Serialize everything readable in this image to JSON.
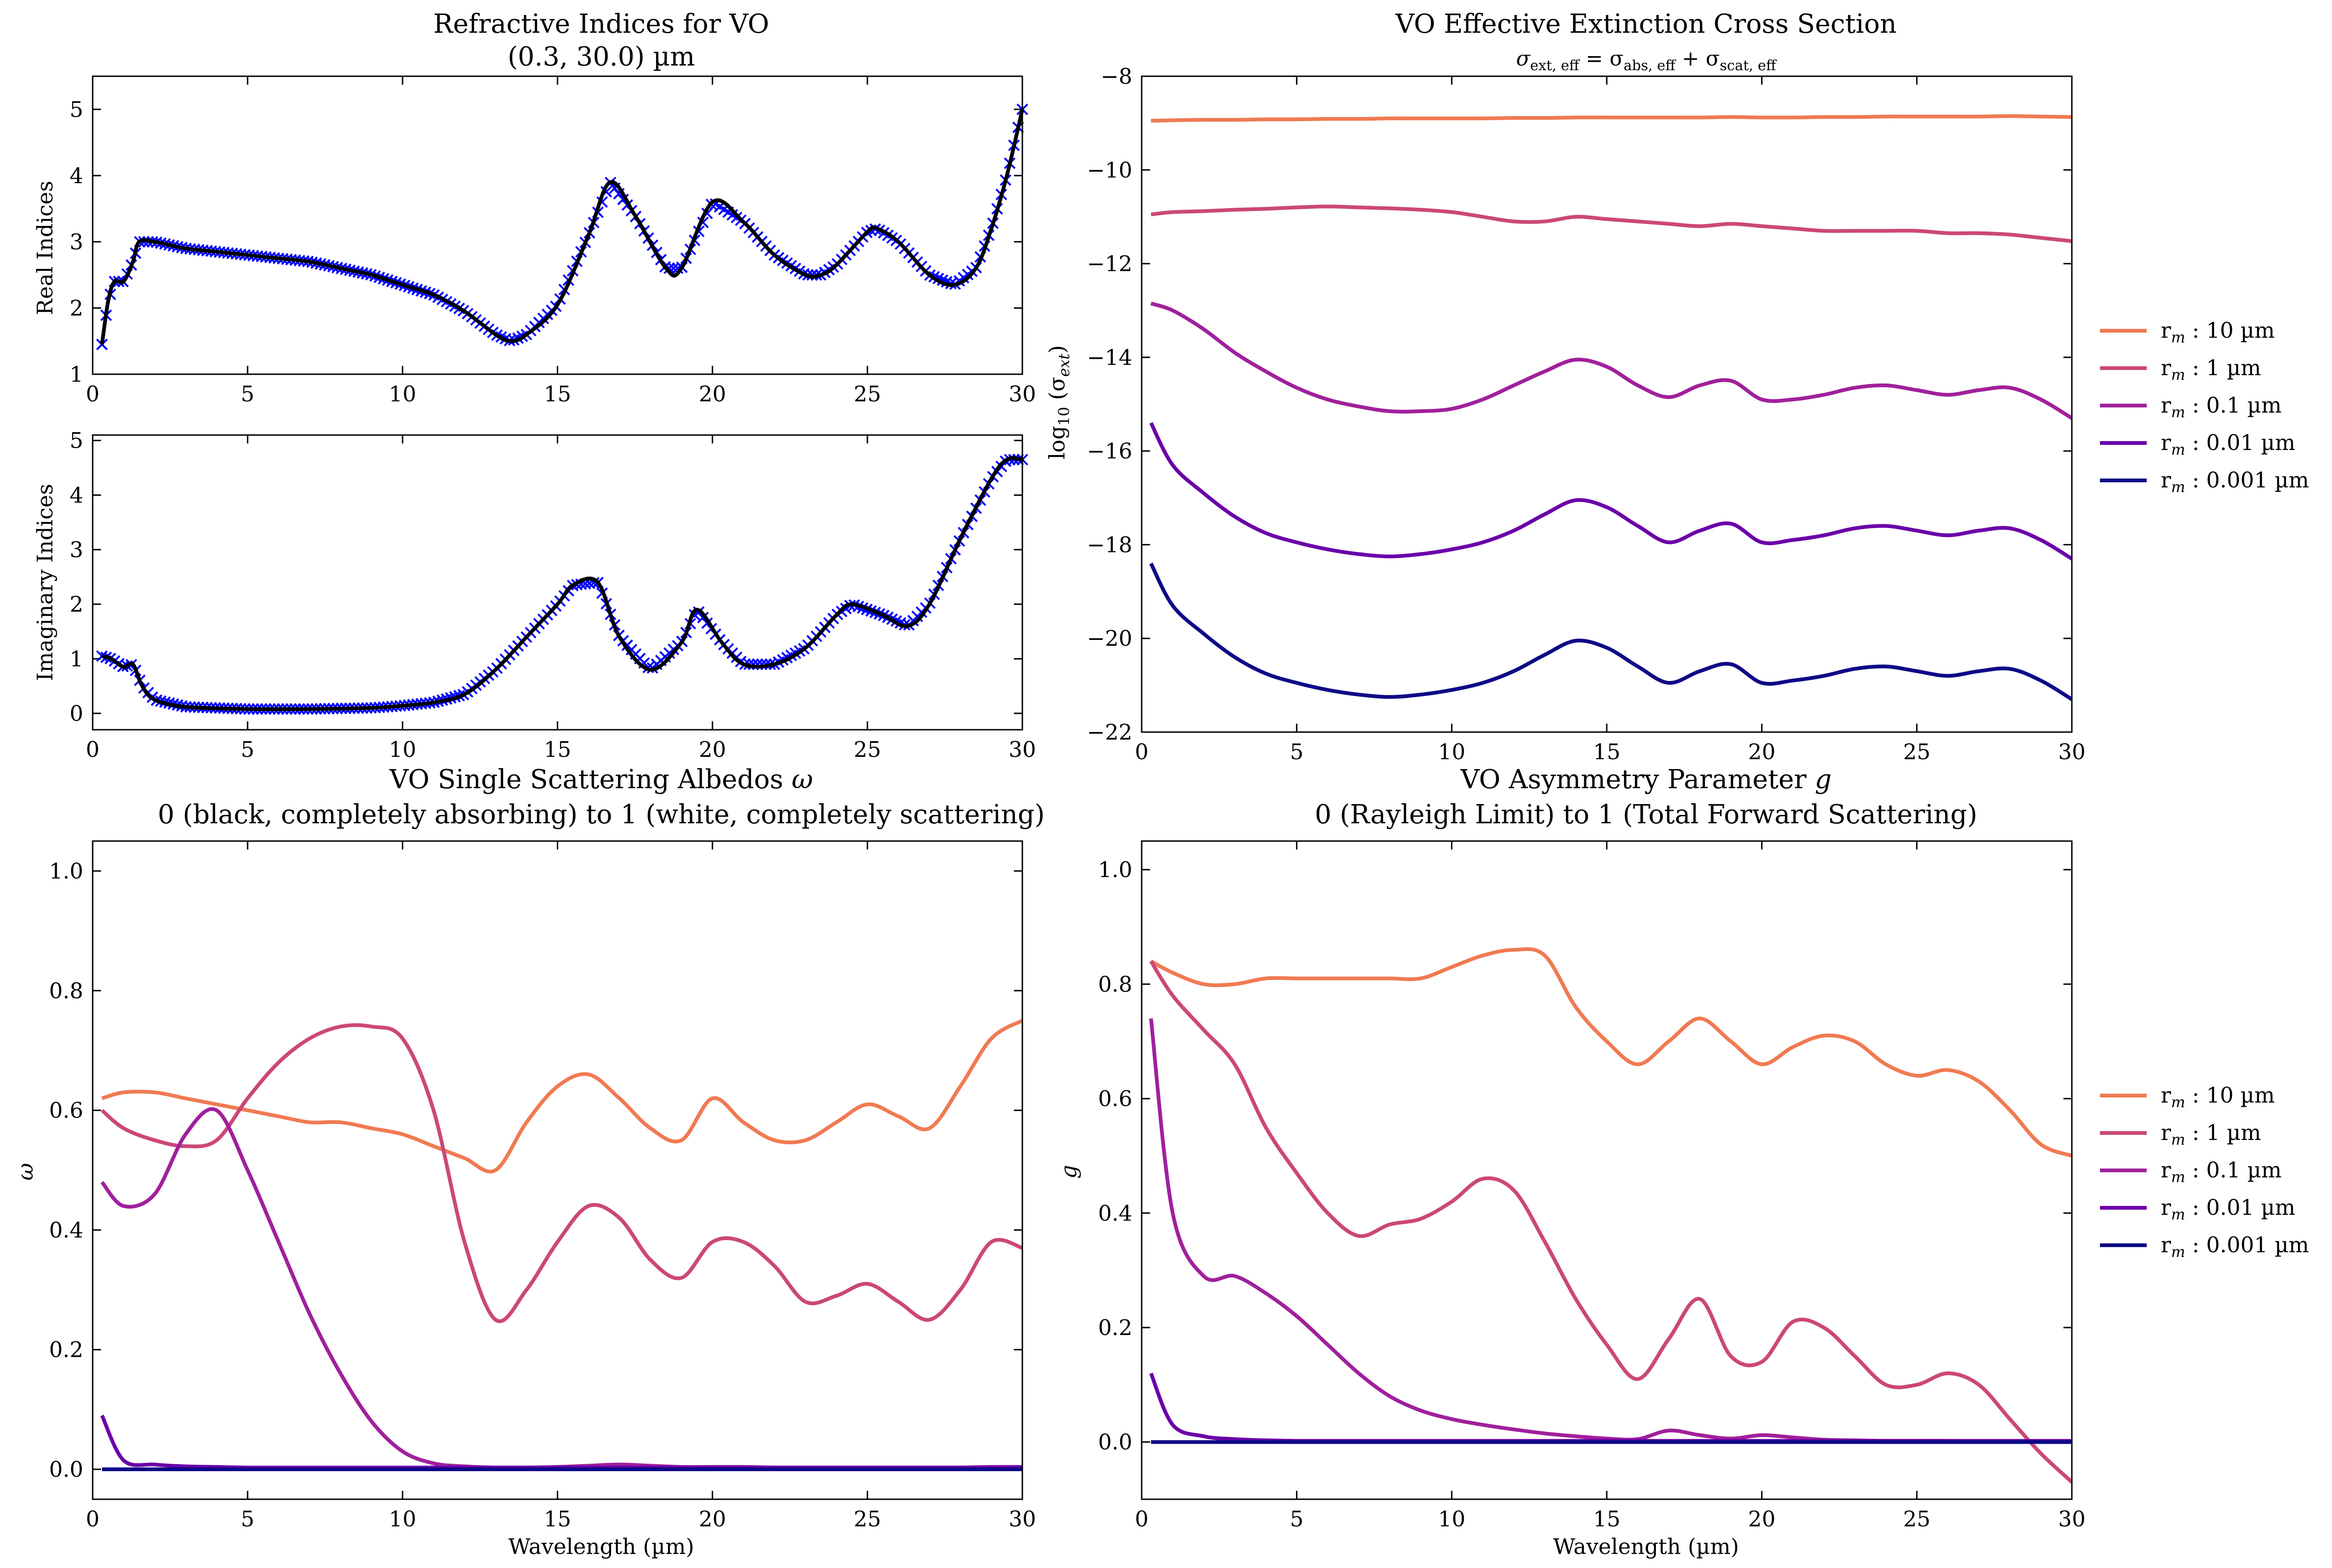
{
  "figure": {
    "panels": [
      "refractive",
      "extinction",
      "albedo",
      "asymmetry"
    ]
  },
  "chart_data": [
    {
      "id": "refractive",
      "type": "line",
      "title": "Refractive Indices for VO",
      "subtitle": "(0.3, 30.0) µm",
      "colors": {
        "line": "#000000",
        "marker": "#0000ff"
      },
      "subplots": [
        {
          "id": "real",
          "ylabel": "Real Indices",
          "xlabel": "",
          "xlim": [
            0,
            30
          ],
          "ylim": [
            1,
            5.5
          ],
          "xticks": [
            0,
            5,
            10,
            15,
            20,
            25,
            30
          ],
          "yticks": [
            1,
            2,
            3,
            4,
            5
          ],
          "x": [
            0.3,
            0.5,
            0.7,
            1.0,
            1.3,
            1.5,
            2,
            3,
            4,
            5,
            6,
            7,
            8,
            9,
            10,
            11,
            12,
            13,
            13.5,
            14,
            15,
            16,
            16.7,
            17.5,
            18.5,
            19,
            20,
            21,
            22,
            23,
            23.5,
            24,
            25,
            25.3,
            26,
            27,
            27.8,
            28.5,
            29,
            29.5,
            30
          ],
          "y": [
            1.45,
            2.1,
            2.4,
            2.4,
            2.7,
            3.0,
            3.0,
            2.9,
            2.85,
            2.8,
            2.75,
            2.7,
            2.6,
            2.5,
            2.35,
            2.2,
            1.95,
            1.6,
            1.5,
            1.6,
            2.05,
            3.1,
            3.9,
            3.4,
            2.6,
            2.6,
            3.6,
            3.3,
            2.8,
            2.5,
            2.5,
            2.65,
            3.15,
            3.2,
            3.0,
            2.5,
            2.35,
            2.6,
            3.2,
            4.0,
            5.0
          ]
        },
        {
          "id": "imag",
          "ylabel": "Imaginary Indices",
          "xlabel": "",
          "xlim": [
            0,
            30
          ],
          "ylim": [
            -0.3,
            5.1
          ],
          "xticks": [
            0,
            5,
            10,
            15,
            20,
            25,
            30
          ],
          "yticks": [
            0,
            1,
            2,
            3,
            4,
            5
          ],
          "x": [
            0.3,
            0.6,
            1.0,
            1.3,
            1.6,
            2,
            3,
            5,
            7,
            9,
            10,
            11,
            12,
            13,
            14,
            15,
            15.5,
            16.3,
            17,
            18,
            19,
            19.5,
            20.3,
            21,
            22,
            23,
            24,
            24.5,
            25.5,
            26.3,
            27,
            28,
            29,
            29.5,
            30
          ],
          "y": [
            1.05,
            1.0,
            0.85,
            0.9,
            0.5,
            0.25,
            0.12,
            0.08,
            0.08,
            0.1,
            0.14,
            0.2,
            0.35,
            0.8,
            1.4,
            2.0,
            2.35,
            2.4,
            1.4,
            0.8,
            1.3,
            1.9,
            1.3,
            0.9,
            0.9,
            1.2,
            1.8,
            2.0,
            1.8,
            1.6,
            2.0,
            3.2,
            4.3,
            4.65,
            4.65
          ]
        }
      ]
    },
    {
      "id": "extinction",
      "type": "line",
      "title": "VO Effective Extinction Cross Section",
      "subtitle_parts": [
        "σ",
        "ext, eff",
        " = σ",
        "abs, eff",
        " + σ",
        "scat, eff"
      ],
      "ylabel_parts": [
        "log",
        "10",
        " (σ",
        "ext",
        ")"
      ],
      "xlabel": "",
      "xlim": [
        0,
        30
      ],
      "ylim": [
        -22,
        -8
      ],
      "xticks": [
        0,
        5,
        10,
        15,
        20,
        25,
        30
      ],
      "yticks": [
        -22,
        -20,
        -18,
        -16,
        -14,
        -12,
        -10,
        -8
      ],
      "legend": "right-outside",
      "x": [
        0.3,
        1,
        2,
        3,
        4,
        5,
        6,
        7,
        8,
        9,
        10,
        11,
        12,
        13,
        14,
        15,
        16,
        17,
        18,
        19,
        20,
        21,
        22,
        23,
        24,
        25,
        26,
        27,
        28,
        29,
        30
      ],
      "series": [
        {
          "name": "10 µm",
          "color": "#f07a52",
          "values": [
            -8.95,
            -8.94,
            -8.93,
            -8.93,
            -8.92,
            -8.92,
            -8.91,
            -8.91,
            -8.9,
            -8.9,
            -8.9,
            -8.9,
            -8.89,
            -8.89,
            -8.88,
            -8.88,
            -8.88,
            -8.88,
            -8.88,
            -8.87,
            -8.88,
            -8.88,
            -8.87,
            -8.87,
            -8.86,
            -8.86,
            -8.86,
            -8.86,
            -8.85,
            -8.86,
            -8.87
          ]
        },
        {
          "name": "1 µm",
          "color": "#cc4778",
          "values": [
            -10.95,
            -10.9,
            -10.88,
            -10.85,
            -10.83,
            -10.8,
            -10.78,
            -10.8,
            -10.82,
            -10.85,
            -10.9,
            -11.0,
            -11.1,
            -11.1,
            -11.0,
            -11.05,
            -11.1,
            -11.15,
            -11.2,
            -11.15,
            -11.2,
            -11.25,
            -11.3,
            -11.3,
            -11.3,
            -11.3,
            -11.35,
            -11.35,
            -11.38,
            -11.45,
            -11.52
          ]
        },
        {
          "name": "0.1 µm",
          "color": "#a0209c",
          "values": [
            -12.85,
            -13.0,
            -13.4,
            -13.9,
            -14.3,
            -14.65,
            -14.9,
            -15.05,
            -15.15,
            -15.15,
            -15.1,
            -14.9,
            -14.6,
            -14.3,
            -14.05,
            -14.2,
            -14.6,
            -14.85,
            -14.6,
            -14.5,
            -14.9,
            -14.9,
            -14.8,
            -14.65,
            -14.6,
            -14.7,
            -14.8,
            -14.7,
            -14.65,
            -14.9,
            -15.3
          ]
        },
        {
          "name": "0.01 µm",
          "color": "#6a00a8",
          "values": [
            -15.4,
            -16.3,
            -16.9,
            -17.4,
            -17.75,
            -17.95,
            -18.1,
            -18.2,
            -18.25,
            -18.2,
            -18.1,
            -17.95,
            -17.7,
            -17.35,
            -17.05,
            -17.2,
            -17.6,
            -17.95,
            -17.7,
            -17.55,
            -17.95,
            -17.9,
            -17.8,
            -17.65,
            -17.6,
            -17.7,
            -17.8,
            -17.7,
            -17.65,
            -17.9,
            -18.3
          ]
        },
        {
          "name": "0.001 µm",
          "color": "#0d0887",
          "values": [
            -18.4,
            -19.3,
            -19.9,
            -20.4,
            -20.75,
            -20.95,
            -21.1,
            -21.2,
            -21.25,
            -21.2,
            -21.1,
            -20.95,
            -20.7,
            -20.35,
            -20.05,
            -20.2,
            -20.6,
            -20.95,
            -20.7,
            -20.55,
            -20.95,
            -20.9,
            -20.8,
            -20.65,
            -20.6,
            -20.7,
            -20.8,
            -20.7,
            -20.65,
            -20.9,
            -21.3
          ]
        }
      ]
    },
    {
      "id": "albedo",
      "type": "line",
      "title_parts": [
        "VO Single Scattering Albedos ",
        "ω"
      ],
      "subtitle": "0 (black, completely absorbing) to 1 (white, completely scattering)",
      "xlabel": "Wavelength (µm)",
      "ylabel": "ω",
      "xlim": [
        0,
        30
      ],
      "ylim": [
        -0.05,
        1.05
      ],
      "xticks": [
        0,
        5,
        10,
        15,
        20,
        25,
        30
      ],
      "yticks": [
        0.0,
        0.2,
        0.4,
        0.6,
        0.8,
        1.0
      ],
      "x": [
        0.3,
        1,
        2,
        3,
        4,
        5,
        6,
        7,
        8,
        9,
        10,
        11,
        12,
        13,
        14,
        15,
        16,
        17,
        18,
        19,
        20,
        21,
        22,
        23,
        24,
        25,
        26,
        27,
        28,
        29,
        30
      ],
      "series": [
        {
          "name": "10 µm",
          "color": "#f07a52",
          "values": [
            0.62,
            0.63,
            0.63,
            0.62,
            0.61,
            0.6,
            0.59,
            0.58,
            0.58,
            0.57,
            0.56,
            0.54,
            0.52,
            0.5,
            0.58,
            0.64,
            0.66,
            0.62,
            0.57,
            0.55,
            0.62,
            0.58,
            0.55,
            0.55,
            0.58,
            0.61,
            0.59,
            0.57,
            0.64,
            0.72,
            0.75
          ]
        },
        {
          "name": "1 µm",
          "color": "#cc4778",
          "values": [
            0.6,
            0.57,
            0.55,
            0.54,
            0.55,
            0.62,
            0.68,
            0.72,
            0.74,
            0.74,
            0.72,
            0.6,
            0.38,
            0.25,
            0.3,
            0.38,
            0.44,
            0.42,
            0.35,
            0.32,
            0.38,
            0.38,
            0.34,
            0.28,
            0.29,
            0.31,
            0.28,
            0.25,
            0.3,
            0.38,
            0.37
          ]
        },
        {
          "name": "0.1 µm",
          "color": "#a0209c",
          "values": [
            0.48,
            0.44,
            0.46,
            0.56,
            0.6,
            0.5,
            0.38,
            0.26,
            0.16,
            0.08,
            0.03,
            0.01,
            0.005,
            0.003,
            0.003,
            0.004,
            0.006,
            0.008,
            0.006,
            0.004,
            0.004,
            0.004,
            0.003,
            0.003,
            0.003,
            0.003,
            0.003,
            0.003,
            0.003,
            0.004,
            0.004
          ]
        },
        {
          "name": "0.01 µm",
          "color": "#6a00a8",
          "values": [
            0.09,
            0.015,
            0.008,
            0.005,
            0.004,
            0.003,
            0.003,
            0.003,
            0.003,
            0.003,
            0.003,
            0.003,
            0.003,
            0.003,
            0.003,
            0.003,
            0.003,
            0.003,
            0.003,
            0.003,
            0.003,
            0.003,
            0.003,
            0.003,
            0.003,
            0.003,
            0.003,
            0.003,
            0.003,
            0.003,
            0.003
          ]
        },
        {
          "name": "0.001 µm",
          "color": "#0d0887",
          "values": [
            0.0,
            0.0,
            0.0,
            0.0,
            0.0,
            0.0,
            0.0,
            0.0,
            0.0,
            0.0,
            0.0,
            0.0,
            0.0,
            0.0,
            0.0,
            0.0,
            0.0,
            0.0,
            0.0,
            0.0,
            0.0,
            0.0,
            0.0,
            0.0,
            0.0,
            0.0,
            0.0,
            0.0,
            0.0,
            0.0,
            0.0
          ]
        }
      ]
    },
    {
      "id": "asymmetry",
      "type": "line",
      "title_parts": [
        "VO Asymmetry Parameter ",
        "g"
      ],
      "subtitle": "0 (Rayleigh Limit) to 1 (Total Forward Scattering)",
      "xlabel": "Wavelength (µm)",
      "ylabel": "g",
      "xlim": [
        0,
        30
      ],
      "ylim": [
        -0.1,
        1.05
      ],
      "xticks": [
        0,
        5,
        10,
        15,
        20,
        25,
        30
      ],
      "yticks": [
        0.0,
        0.2,
        0.4,
        0.6,
        0.8,
        1.0
      ],
      "legend": "right-outside",
      "x": [
        0.3,
        1,
        2,
        3,
        4,
        5,
        6,
        7,
        8,
        9,
        10,
        11,
        12,
        13,
        14,
        15,
        16,
        17,
        18,
        19,
        20,
        21,
        22,
        23,
        24,
        25,
        26,
        27,
        28,
        29,
        30
      ],
      "series": [
        {
          "name": "10 µm",
          "color": "#f07a52",
          "values": [
            0.84,
            0.82,
            0.8,
            0.8,
            0.81,
            0.81,
            0.81,
            0.81,
            0.81,
            0.81,
            0.83,
            0.85,
            0.86,
            0.85,
            0.76,
            0.7,
            0.66,
            0.7,
            0.74,
            0.7,
            0.66,
            0.69,
            0.71,
            0.7,
            0.66,
            0.64,
            0.65,
            0.63,
            0.58,
            0.52,
            0.5
          ]
        },
        {
          "name": "1 µm",
          "color": "#cc4778",
          "values": [
            0.84,
            0.78,
            0.72,
            0.66,
            0.55,
            0.47,
            0.4,
            0.36,
            0.38,
            0.39,
            0.42,
            0.46,
            0.44,
            0.35,
            0.25,
            0.17,
            0.11,
            0.18,
            0.25,
            0.15,
            0.14,
            0.21,
            0.2,
            0.15,
            0.1,
            0.1,
            0.12,
            0.1,
            0.04,
            -0.02,
            -0.07
          ]
        },
        {
          "name": "0.1 µm",
          "color": "#a0209c",
          "values": [
            0.74,
            0.4,
            0.29,
            0.29,
            0.26,
            0.22,
            0.17,
            0.12,
            0.08,
            0.055,
            0.04,
            0.03,
            0.022,
            0.015,
            0.01,
            0.006,
            0.005,
            0.02,
            0.012,
            0.006,
            0.012,
            0.008,
            0.004,
            0.003,
            0.002,
            0.002,
            0.002,
            0.001,
            0.001,
            0.001,
            0.001
          ]
        },
        {
          "name": "0.01 µm",
          "color": "#6a00a8",
          "values": [
            0.12,
            0.03,
            0.01,
            0.005,
            0.003,
            0.002,
            0.002,
            0.002,
            0.002,
            0.002,
            0.002,
            0.002,
            0.002,
            0.002,
            0.002,
            0.002,
            0.002,
            0.002,
            0.002,
            0.002,
            0.002,
            0.002,
            0.002,
            0.002,
            0.002,
            0.002,
            0.002,
            0.002,
            0.002,
            0.002,
            0.002
          ]
        },
        {
          "name": "0.001 µm",
          "color": "#0d0887",
          "values": [
            0.0,
            0.0,
            0.0,
            0.0,
            0.0,
            0.0,
            0.0,
            0.0,
            0.0,
            0.0,
            0.0,
            0.0,
            0.0,
            0.0,
            0.0,
            0.0,
            0.0,
            0.0,
            0.0,
            0.0,
            0.0,
            0.0,
            0.0,
            0.0,
            0.0,
            0.0,
            0.0,
            0.0,
            0.0,
            0.0,
            0.0
          ]
        }
      ]
    }
  ],
  "legend": {
    "prefix": "r",
    "sub": "m",
    "sep": " : ",
    "entries": [
      "10 µm",
      "1 µm",
      "0.1 µm",
      "0.01 µm",
      "0.001 µm"
    ]
  }
}
